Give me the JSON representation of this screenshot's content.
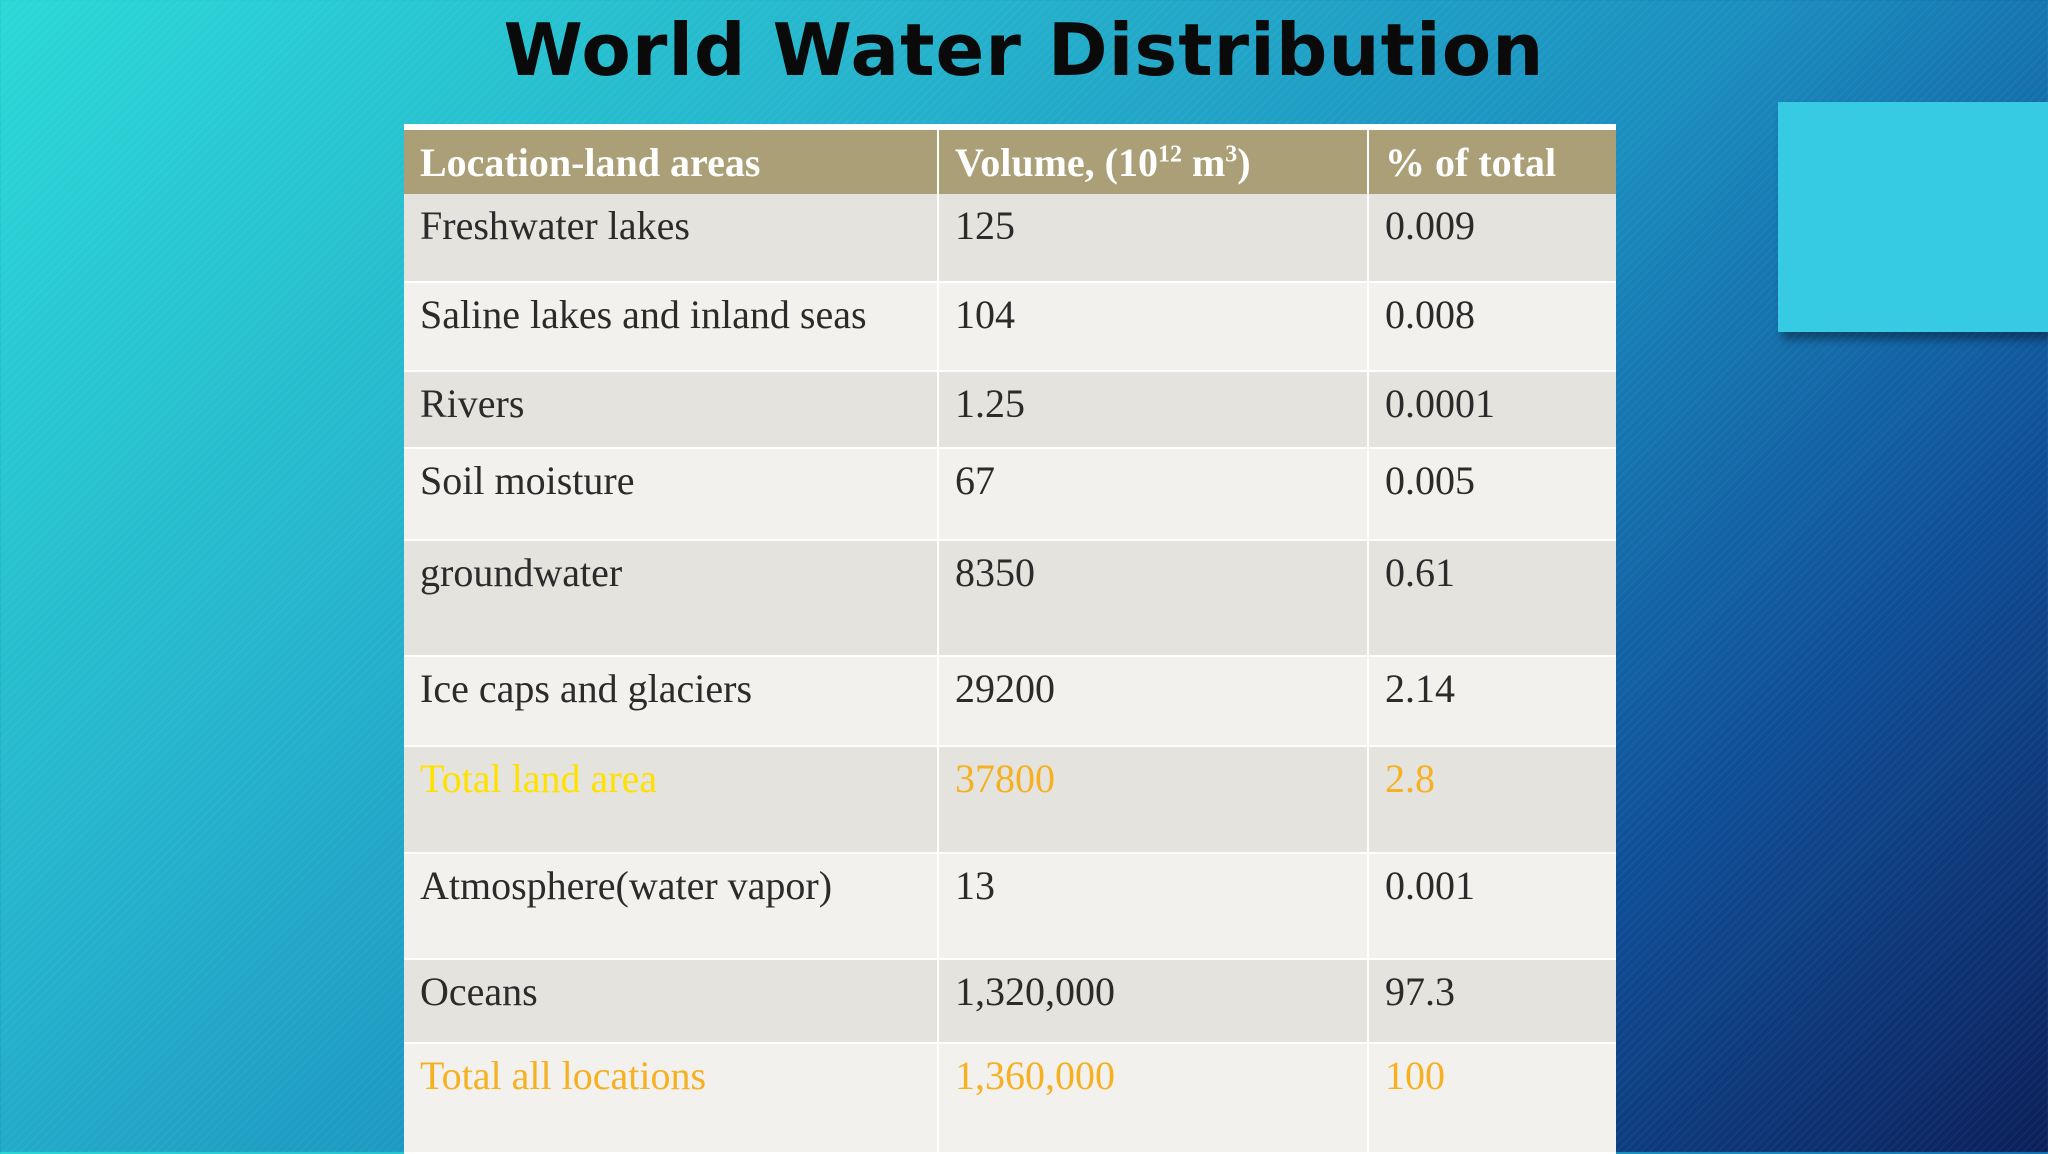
{
  "slide": {
    "title": "World Water Distribution"
  },
  "table": {
    "headers": {
      "col1": "Location-land areas",
      "col2_text": "Volume, (10",
      "col2_sup12": "12",
      "col2_unit": " m",
      "col2_sup3": "3",
      "col2_close": ")",
      "col3": "% of total"
    },
    "rows": [
      {
        "location": "Freshwater lakes",
        "volume": "125",
        "percent": "0.009"
      },
      {
        "location": "Saline lakes and inland seas",
        "volume": "104",
        "percent": "0.008"
      },
      {
        "location": "Rivers",
        "volume": "1.25",
        "percent": "0.0001"
      },
      {
        "location": "Soil moisture",
        "volume": "67",
        "percent": "0.005"
      },
      {
        "location": "groundwater",
        "volume": "8350",
        "percent": "0.61"
      },
      {
        "location": "Ice caps and glaciers",
        "volume": "29200",
        "percent": "2.14"
      },
      {
        "location": "Total land area",
        "volume": "37800",
        "percent": "2.8"
      },
      {
        "location": "Atmosphere(water vapor)",
        "volume": "13",
        "percent": "0.001"
      },
      {
        "location": "Oceans",
        "volume": "1,320,000",
        "percent": "97.3"
      },
      {
        "location": "Total all locations",
        "volume": "1,360,000",
        "percent": "100"
      }
    ]
  },
  "colors": {
    "header_bg": "#ab9f77",
    "highlight_yellow": "#ffe100",
    "highlight_orange": "#f5b122",
    "deco_box": "#36cbe3"
  }
}
